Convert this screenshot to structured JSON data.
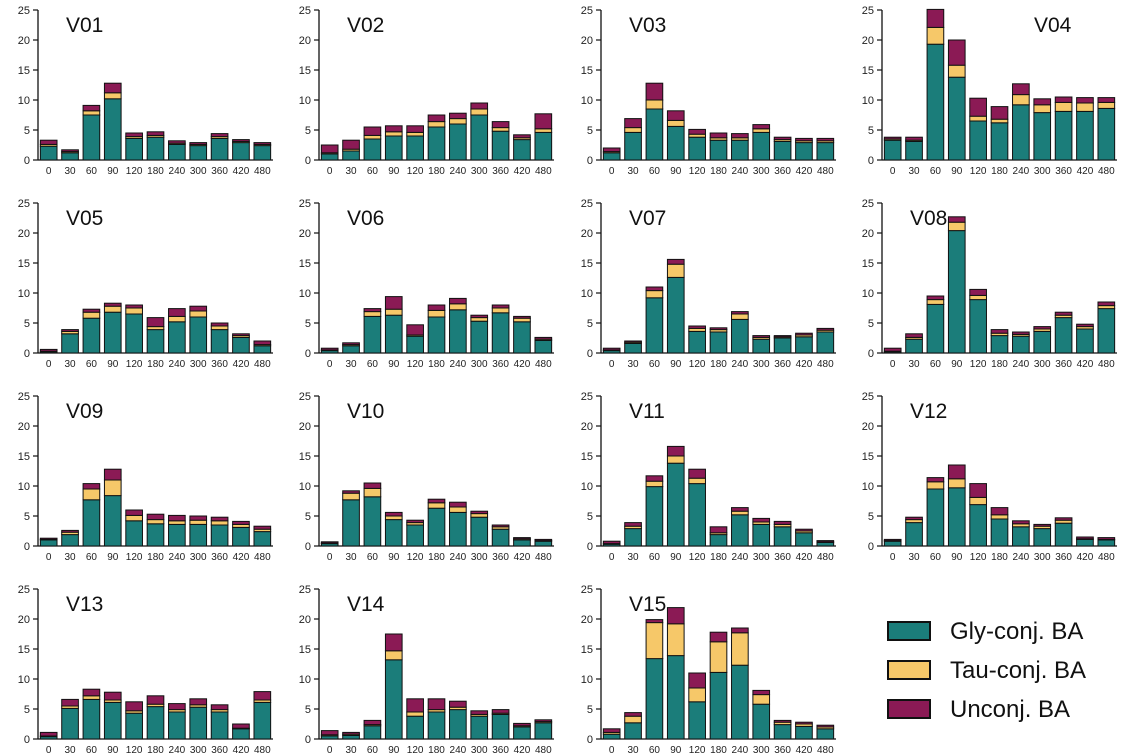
{
  "chart_data": {
    "type": "bar",
    "stacked": true,
    "x_ticks": [
      "0",
      "30",
      "60",
      "90",
      "120",
      "180",
      "240",
      "300",
      "360",
      "420",
      "480"
    ],
    "ylim": [
      0,
      25
    ],
    "y_ticks": [
      0,
      5,
      10,
      15,
      20,
      25
    ],
    "series_names": [
      "Gly-conj. BA",
      "Tau-conj. BA",
      "Unconj. BA"
    ],
    "colors": {
      "gly": "#1b7d7a",
      "tau": "#f6c869",
      "unconj": "#8b1a55"
    },
    "legend_position": "bottom-right",
    "panels": [
      {
        "title": "V01",
        "gly": [
          2.3,
          1.2,
          7.5,
          10.2,
          3.6,
          3.8,
          2.6,
          2.4,
          3.6,
          2.9,
          2.4
        ],
        "tau": [
          0.3,
          0.2,
          0.7,
          1.0,
          0.3,
          0.3,
          0.2,
          0.2,
          0.3,
          0.2,
          0.2
        ],
        "unconj": [
          0.7,
          0.3,
          0.9,
          1.6,
          0.6,
          0.6,
          0.4,
          0.3,
          0.5,
          0.3,
          0.3
        ]
      },
      {
        "title": "V02",
        "gly": [
          1.0,
          1.5,
          3.5,
          4.0,
          4.0,
          5.5,
          6.0,
          7.5,
          4.8,
          3.4,
          4.6
        ],
        "tau": [
          0.2,
          0.3,
          0.6,
          0.7,
          0.6,
          0.9,
          0.9,
          1.0,
          0.6,
          0.3,
          0.6
        ],
        "unconj": [
          1.3,
          1.5,
          1.4,
          1.0,
          1.1,
          1.1,
          0.9,
          1.0,
          1.0,
          0.5,
          2.5
        ]
      },
      {
        "title": "V03",
        "gly": [
          1.2,
          4.6,
          8.5,
          5.6,
          3.8,
          3.3,
          3.3,
          4.6,
          3.1,
          2.9,
          2.9
        ],
        "tau": [
          0.2,
          0.8,
          1.5,
          1.0,
          0.5,
          0.4,
          0.4,
          0.6,
          0.3,
          0.3,
          0.3
        ],
        "unconj": [
          0.6,
          1.5,
          2.8,
          1.6,
          0.8,
          0.8,
          0.7,
          0.7,
          0.4,
          0.4,
          0.4
        ]
      },
      {
        "title": "V04",
        "gly": [
          3.3,
          3.1,
          19.3,
          13.8,
          6.5,
          6.2,
          9.2,
          7.9,
          8.1,
          8.1,
          8.6
        ],
        "tau": [
          0.2,
          0.2,
          2.8,
          2.0,
          0.8,
          0.6,
          1.7,
          1.3,
          1.5,
          1.4,
          1.0
        ],
        "unconj": [
          0.3,
          0.5,
          3.0,
          4.2,
          3.0,
          2.1,
          1.8,
          1.0,
          0.9,
          0.9,
          0.8
        ]
      },
      {
        "title": "V05",
        "gly": [
          0.2,
          3.2,
          5.8,
          6.8,
          6.5,
          3.9,
          5.2,
          6.0,
          3.9,
          2.6,
          1.2
        ],
        "tau": [
          0.1,
          0.4,
          1.0,
          1.0,
          1.0,
          0.5,
          0.9,
          1.0,
          0.6,
          0.3,
          0.2
        ],
        "unconj": [
          0.3,
          0.3,
          0.5,
          0.5,
          0.5,
          1.5,
          1.3,
          0.8,
          0.5,
          0.3,
          0.6
        ]
      },
      {
        "title": "V06",
        "gly": [
          0.4,
          1.2,
          6.1,
          6.3,
          2.8,
          6.0,
          7.2,
          5.3,
          6.7,
          5.2,
          2.1
        ],
        "tau": [
          0.1,
          0.2,
          0.8,
          1.0,
          0.2,
          1.1,
          1.0,
          0.6,
          0.8,
          0.6,
          0.2
        ],
        "unconj": [
          0.3,
          0.3,
          0.5,
          2.1,
          1.7,
          0.9,
          0.9,
          0.4,
          0.5,
          0.3,
          0.3
        ]
      },
      {
        "title": "V07",
        "gly": [
          0.4,
          1.6,
          9.2,
          12.6,
          3.6,
          3.5,
          5.6,
          2.3,
          2.5,
          2.7,
          3.5
        ],
        "tau": [
          0.1,
          0.2,
          1.2,
          2.2,
          0.5,
          0.4,
          0.9,
          0.3,
          0.2,
          0.3,
          0.3
        ],
        "unconj": [
          0.3,
          0.2,
          0.6,
          0.8,
          0.4,
          0.3,
          0.4,
          0.3,
          0.2,
          0.3,
          0.3
        ]
      },
      {
        "title": "V08",
        "gly": [
          0.2,
          2.3,
          8.1,
          20.4,
          8.9,
          2.9,
          2.8,
          3.6,
          5.9,
          4.0,
          7.4
        ],
        "tau": [
          0.1,
          0.3,
          0.8,
          1.4,
          0.7,
          0.4,
          0.3,
          0.4,
          0.4,
          0.4,
          0.5
        ],
        "unconj": [
          0.5,
          0.6,
          0.6,
          0.9,
          1.0,
          0.6,
          0.4,
          0.4,
          0.5,
          0.4,
          0.6
        ]
      },
      {
        "title": "V09",
        "gly": [
          1.0,
          1.9,
          7.7,
          8.4,
          4.2,
          3.7,
          3.6,
          3.6,
          3.5,
          3.1,
          2.4
        ],
        "tau": [
          0.1,
          0.4,
          1.8,
          2.6,
          0.9,
          0.7,
          0.6,
          0.7,
          0.7,
          0.5,
          0.4
        ],
        "unconj": [
          0.2,
          0.3,
          0.9,
          1.8,
          0.9,
          0.9,
          0.9,
          0.7,
          0.6,
          0.5,
          0.5
        ]
      },
      {
        "title": "V10",
        "gly": [
          0.4,
          7.7,
          8.2,
          4.4,
          3.5,
          6.3,
          5.6,
          4.8,
          2.8,
          1.0,
          0.8
        ],
        "tau": [
          0.1,
          1.1,
          1.4,
          0.6,
          0.4,
          0.9,
          0.9,
          0.6,
          0.4,
          0.2,
          0.1
        ],
        "unconj": [
          0.2,
          0.4,
          0.9,
          0.6,
          0.4,
          0.6,
          0.8,
          0.4,
          0.3,
          0.2,
          0.2
        ]
      },
      {
        "title": "V11",
        "gly": [
          0.3,
          2.9,
          9.9,
          13.8,
          10.4,
          1.9,
          5.2,
          3.6,
          3.2,
          2.2,
          0.6
        ],
        "tau": [
          0.1,
          0.4,
          0.9,
          1.2,
          0.9,
          0.3,
          0.6,
          0.4,
          0.4,
          0.3,
          0.1
        ],
        "unconj": [
          0.4,
          0.6,
          0.9,
          1.6,
          1.5,
          1.0,
          0.6,
          0.6,
          0.5,
          0.3,
          0.2
        ]
      },
      {
        "title": "V12",
        "gly": [
          0.8,
          3.9,
          9.5,
          9.7,
          6.9,
          4.5,
          3.2,
          2.9,
          3.8,
          1.1,
          1.0
        ],
        "tau": [
          0.1,
          0.5,
          1.2,
          1.5,
          1.2,
          0.7,
          0.5,
          0.4,
          0.5,
          0.1,
          0.1
        ],
        "unconj": [
          0.2,
          0.4,
          0.7,
          2.3,
          2.3,
          1.2,
          0.5,
          0.3,
          0.4,
          0.3,
          0.3
        ]
      },
      {
        "title": "V13",
        "gly": [
          0.4,
          5.1,
          6.6,
          6.1,
          4.3,
          5.4,
          4.5,
          5.3,
          4.5,
          1.7,
          6.1
        ],
        "tau": [
          0.1,
          0.4,
          0.6,
          0.4,
          0.4,
          0.4,
          0.4,
          0.4,
          0.4,
          0.1,
          0.4
        ],
        "unconj": [
          0.6,
          1.1,
          1.1,
          1.3,
          1.5,
          1.4,
          1.0,
          1.0,
          0.8,
          0.7,
          1.4
        ]
      },
      {
        "title": "V14",
        "gly": [
          0.5,
          0.6,
          2.2,
          13.2,
          3.8,
          4.5,
          4.9,
          3.8,
          4.1,
          2.0,
          2.7
        ],
        "tau": [
          0.2,
          0.2,
          0.2,
          1.5,
          0.7,
          0.4,
          0.4,
          0.3,
          0.2,
          0.2,
          0.2
        ],
        "unconj": [
          0.7,
          0.3,
          0.7,
          2.8,
          2.2,
          1.8,
          1.0,
          0.6,
          0.6,
          0.4,
          0.3
        ]
      },
      {
        "title": "V15",
        "gly": [
          0.8,
          2.7,
          13.4,
          13.9,
          6.2,
          11.1,
          12.3,
          5.8,
          2.4,
          2.1,
          1.7
        ],
        "tau": [
          0.3,
          1.1,
          6.0,
          5.3,
          2.3,
          5.1,
          5.4,
          1.6,
          0.4,
          0.4,
          0.3
        ],
        "unconj": [
          0.6,
          0.6,
          0.5,
          2.7,
          2.5,
          1.6,
          0.8,
          0.7,
          0.3,
          0.3,
          0.3
        ]
      }
    ]
  }
}
